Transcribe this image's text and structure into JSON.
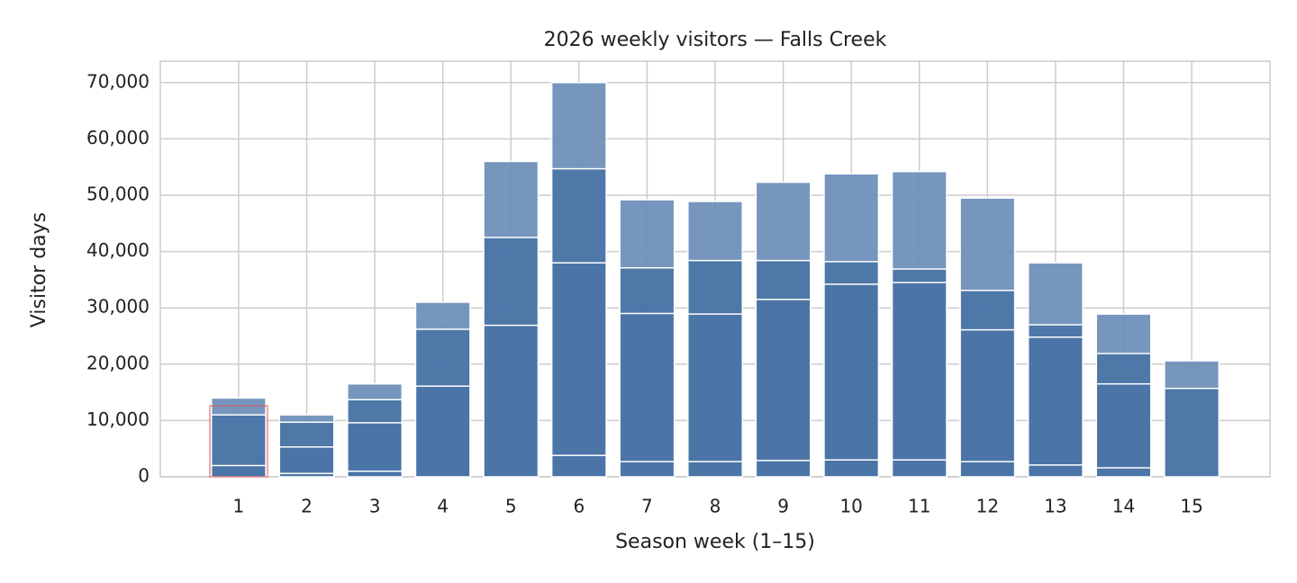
{
  "chart_data": {
    "type": "bar",
    "title": "2026 weekly visitors — Falls Creek",
    "x_label": "Season week (1–15)",
    "y_label": "Visitor days",
    "x": [
      1,
      2,
      3,
      4,
      5,
      6,
      7,
      8,
      9,
      10,
      11,
      12,
      13,
      14,
      15
    ],
    "xlim": [
      -0.15,
      16.15
    ],
    "xticks": [
      1,
      2,
      3,
      4,
      5,
      6,
      7,
      8,
      9,
      10,
      11,
      12,
      13,
      14,
      15
    ],
    "ylim": [
      0,
      73800
    ],
    "yticks": [
      0,
      {
        "value": 10000,
        "label": "10,000"
      },
      {
        "value": 20000,
        "label": "20,000"
      },
      {
        "value": 30000,
        "label": "30,000"
      },
      {
        "value": 40000,
        "label": "40,000"
      },
      {
        "value": 50000,
        "label": "50,000"
      },
      {
        "value": 60000,
        "label": "60,000"
      },
      {
        "value": 70000,
        "label": "70,000"
      }
    ],
    "grid": true,
    "series": [
      {
        "color": "#6a8db9",
        "values": [
          14000,
          11000,
          16500,
          31000,
          56000,
          70000,
          49200,
          48900,
          52300,
          53800,
          54200,
          49500,
          38000,
          28900,
          20600
        ]
      },
      {
        "color": "#4a75a6",
        "values": [
          11000,
          9700,
          13700,
          26200,
          42500,
          54700,
          37100,
          38400,
          38400,
          38200,
          36900,
          33100,
          27000,
          21900,
          15700
        ]
      },
      {
        "color": "#4a75a6",
        "values": [
          2000,
          5300,
          9600,
          16100,
          26900,
          38000,
          29000,
          28900,
          31500,
          34200,
          34500,
          26100,
          24800,
          16500,
          null
        ]
      },
      {
        "color": "#4a75a6",
        "values": [
          null,
          600,
          1000,
          null,
          null,
          3800,
          2700,
          2700,
          2900,
          3000,
          3000,
          2700,
          2100,
          1600,
          null
        ]
      }
    ]
  }
}
